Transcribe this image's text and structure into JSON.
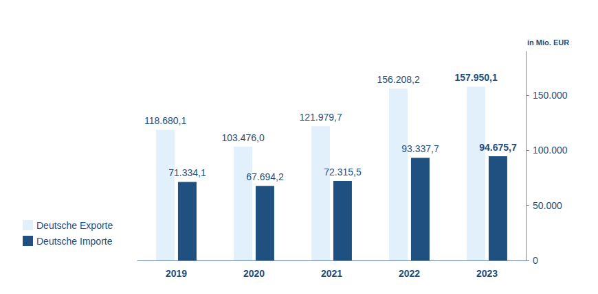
{
  "chart_data": {
    "type": "bar",
    "y_label": "in Mio. EUR",
    "categories": [
      "2019",
      "2020",
      "2021",
      "2022",
      "2023"
    ],
    "series": [
      {
        "name": "Deutsche Exporte",
        "color": "#e2f0fc",
        "values": [
          118680.1,
          103476.0,
          121979.7,
          156208.2,
          157950.1
        ],
        "value_labels": [
          "118.680,1",
          "103.476,0",
          "121.979,7",
          "156.208,2",
          "157.950,1"
        ]
      },
      {
        "name": "Deutsche Importe",
        "color": "#1f5080",
        "values": [
          71334.1,
          67694.2,
          72315.5,
          93337.7,
          94675.7
        ],
        "value_labels": [
          "71.334,1",
          "67.694,2",
          "72.315,5",
          "93.337,7",
          "94.675,7"
        ]
      }
    ],
    "ylim": [
      0,
      190000
    ],
    "yticks": [
      0,
      {
        "value": 50000,
        "label": "50.000"
      },
      {
        "value": 100000,
        "label": "100.000"
      },
      {
        "value": 150000,
        "label": "150.000"
      }
    ],
    "grid": false,
    "legend": "bottom-left",
    "data_labels": true
  }
}
